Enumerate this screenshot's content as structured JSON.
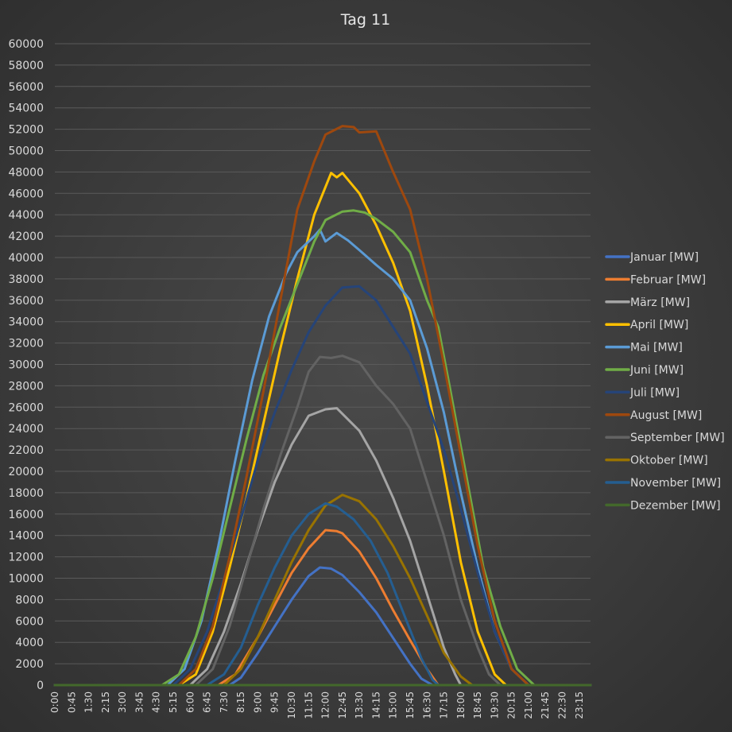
{
  "chart_data": {
    "type": "line",
    "title": "Tag 11",
    "xlabel": "",
    "ylabel": "",
    "ylim": [
      0,
      60000
    ],
    "y_ticks": [
      0,
      2000,
      4000,
      6000,
      8000,
      10000,
      12000,
      14000,
      16000,
      18000,
      20000,
      22000,
      24000,
      26000,
      28000,
      30000,
      32000,
      34000,
      36000,
      38000,
      40000,
      42000,
      44000,
      46000,
      48000,
      50000,
      52000,
      54000,
      56000,
      58000,
      60000
    ],
    "x_range": [
      "0:00",
      "23:45"
    ],
    "x_tick_labels": [
      "0:00",
      "0:45",
      "1:30",
      "2:15",
      "3:00",
      "3:45",
      "4:30",
      "5:15",
      "6:00",
      "6:45",
      "7:30",
      "8:15",
      "9:00",
      "9:45",
      "10:30",
      "11:15",
      "12:00",
      "12:45",
      "13:30",
      "14:15",
      "15:00",
      "15:45",
      "16:30",
      "17:15",
      "18:00",
      "18:45",
      "19:30",
      "20:15",
      "21:00",
      "21:45",
      "22:30",
      "23:15"
    ],
    "grid": true,
    "legend_position": "right",
    "series": [
      {
        "name": "Januar [MW]",
        "color": "#4472c4",
        "points": [
          [
            "0:00",
            0
          ],
          [
            "7:45",
            0
          ],
          [
            "8:15",
            700
          ],
          [
            "9:00",
            3000
          ],
          [
            "9:45",
            5500
          ],
          [
            "10:30",
            8000
          ],
          [
            "11:15",
            10200
          ],
          [
            "11:45",
            11000
          ],
          [
            "12:15",
            10900
          ],
          [
            "12:45",
            10300
          ],
          [
            "13:30",
            8700
          ],
          [
            "14:15",
            6800
          ],
          [
            "15:00",
            4400
          ],
          [
            "15:45",
            2000
          ],
          [
            "16:15",
            600
          ],
          [
            "16:45",
            0
          ],
          [
            "23:45",
            0
          ]
        ]
      },
      {
        "name": "Februar [MW]",
        "color": "#ed7d31",
        "points": [
          [
            "0:00",
            0
          ],
          [
            "7:15",
            0
          ],
          [
            "8:00",
            1000
          ],
          [
            "9:00",
            4500
          ],
          [
            "9:45",
            7500
          ],
          [
            "10:30",
            10500
          ],
          [
            "11:15",
            12800
          ],
          [
            "12:00",
            14500
          ],
          [
            "12:30",
            14400
          ],
          [
            "12:45",
            14200
          ],
          [
            "13:30",
            12500
          ],
          [
            "14:15",
            10000
          ],
          [
            "15:00",
            7000
          ],
          [
            "15:45",
            4200
          ],
          [
            "16:30",
            1500
          ],
          [
            "17:00",
            0
          ],
          [
            "23:45",
            0
          ]
        ]
      },
      {
        "name": "März [MW]",
        "color": "#a5a5a5",
        "points": [
          [
            "0:00",
            0
          ],
          [
            "6:00",
            0
          ],
          [
            "6:45",
            1500
          ],
          [
            "7:30",
            5000
          ],
          [
            "8:15",
            9500
          ],
          [
            "9:00",
            14500
          ],
          [
            "9:45",
            19000
          ],
          [
            "10:30",
            22500
          ],
          [
            "11:15",
            25200
          ],
          [
            "12:00",
            25800
          ],
          [
            "12:30",
            25900
          ],
          [
            "13:30",
            23800
          ],
          [
            "14:15",
            21000
          ],
          [
            "15:00",
            17500
          ],
          [
            "15:45",
            13500
          ],
          [
            "16:30",
            8500
          ],
          [
            "17:15",
            3500
          ],
          [
            "17:45",
            1000
          ],
          [
            "18:00",
            0
          ],
          [
            "23:45",
            0
          ]
        ]
      },
      {
        "name": "April [MW]",
        "color": "#ffc000",
        "points": [
          [
            "0:00",
            0
          ],
          [
            "5:30",
            0
          ],
          [
            "6:15",
            1000
          ],
          [
            "7:00",
            5000
          ],
          [
            "7:45",
            11000
          ],
          [
            "8:30",
            17500
          ],
          [
            "9:15",
            24500
          ],
          [
            "10:00",
            31500
          ],
          [
            "10:45",
            38000
          ],
          [
            "11:30",
            44000
          ],
          [
            "12:15",
            47900
          ],
          [
            "12:30",
            47500
          ],
          [
            "12:45",
            47900
          ],
          [
            "13:30",
            46000
          ],
          [
            "14:15",
            43000
          ],
          [
            "15:00",
            39500
          ],
          [
            "15:45",
            35000
          ],
          [
            "16:30",
            28000
          ],
          [
            "17:15",
            20000
          ],
          [
            "18:00",
            11500
          ],
          [
            "18:45",
            5000
          ],
          [
            "19:30",
            1000
          ],
          [
            "20:00",
            0
          ],
          [
            "23:45",
            0
          ]
        ]
      },
      {
        "name": "Mai [MW]",
        "color": "#5b9bd5",
        "points": [
          [
            "0:00",
            0
          ],
          [
            "5:00",
            0
          ],
          [
            "5:45",
            1500
          ],
          [
            "6:30",
            6000
          ],
          [
            "7:15",
            13000
          ],
          [
            "8:00",
            21000
          ],
          [
            "8:45",
            28500
          ],
          [
            "9:30",
            34500
          ],
          [
            "10:15",
            38500
          ],
          [
            "10:45",
            40500
          ],
          [
            "11:30",
            42000
          ],
          [
            "11:45",
            42600
          ],
          [
            "12:00",
            41500
          ],
          [
            "12:30",
            42300
          ],
          [
            "13:00",
            41600
          ],
          [
            "13:30",
            40700
          ],
          [
            "14:15",
            39300
          ],
          [
            "15:00",
            38000
          ],
          [
            "15:45",
            36000
          ],
          [
            "16:30",
            31500
          ],
          [
            "17:15",
            25500
          ],
          [
            "18:00",
            18000
          ],
          [
            "18:45",
            11000
          ],
          [
            "19:30",
            5000
          ],
          [
            "20:15",
            1500
          ],
          [
            "21:00",
            0
          ],
          [
            "23:45",
            0
          ]
        ]
      },
      {
        "name": "Juni [MW]",
        "color": "#70ad47",
        "points": [
          [
            "0:00",
            0
          ],
          [
            "4:45",
            0
          ],
          [
            "5:30",
            1000
          ],
          [
            "6:15",
            4500
          ],
          [
            "7:00",
            10000
          ],
          [
            "7:45",
            16500
          ],
          [
            "8:30",
            23000
          ],
          [
            "9:15",
            29000
          ],
          [
            "10:00",
            33500
          ],
          [
            "10:45",
            37500
          ],
          [
            "11:30",
            41500
          ],
          [
            "12:00",
            43500
          ],
          [
            "12:45",
            44300
          ],
          [
            "13:15",
            44400
          ],
          [
            "13:45",
            44200
          ],
          [
            "14:15",
            43600
          ],
          [
            "15:00",
            42400
          ],
          [
            "15:45",
            40500
          ],
          [
            "16:30",
            36000
          ],
          [
            "17:00",
            33500
          ],
          [
            "17:30",
            28000
          ],
          [
            "18:15",
            19500
          ],
          [
            "19:00",
            11000
          ],
          [
            "19:45",
            5500
          ],
          [
            "20:30",
            1500
          ],
          [
            "21:15",
            0
          ],
          [
            "23:45",
            0
          ]
        ]
      },
      {
        "name": "Juli [MW]",
        "color": "#264478",
        "points": [
          [
            "0:00",
            0
          ],
          [
            "5:15",
            0
          ],
          [
            "6:00",
            1500
          ],
          [
            "6:45",
            5000
          ],
          [
            "7:30",
            10000
          ],
          [
            "8:15",
            15500
          ],
          [
            "9:00",
            21000
          ],
          [
            "9:45",
            25500
          ],
          [
            "10:30",
            29500
          ],
          [
            "11:15",
            33000
          ],
          [
            "12:00",
            35500
          ],
          [
            "12:45",
            37200
          ],
          [
            "13:30",
            37300
          ],
          [
            "14:15",
            36000
          ],
          [
            "15:00",
            33500
          ],
          [
            "15:45",
            31000
          ],
          [
            "16:30",
            26500
          ],
          [
            "17:15",
            22000
          ],
          [
            "18:00",
            16500
          ],
          [
            "18:45",
            10500
          ],
          [
            "19:30",
            5000
          ],
          [
            "20:15",
            1500
          ],
          [
            "21:00",
            0
          ],
          [
            "23:45",
            0
          ]
        ]
      },
      {
        "name": "August [MW]",
        "color": "#9e480e",
        "points": [
          [
            "0:00",
            0
          ],
          [
            "5:30",
            0
          ],
          [
            "6:15",
            1500
          ],
          [
            "7:00",
            5500
          ],
          [
            "7:45",
            12000
          ],
          [
            "8:30",
            19500
          ],
          [
            "9:15",
            27500
          ],
          [
            "10:00",
            36000
          ],
          [
            "10:45",
            44500
          ],
          [
            "11:30",
            49000
          ],
          [
            "12:00",
            51500
          ],
          [
            "12:45",
            52300
          ],
          [
            "13:15",
            52200
          ],
          [
            "13:30",
            51700
          ],
          [
            "14:15",
            51800
          ],
          [
            "15:00",
            48000
          ],
          [
            "15:45",
            44500
          ],
          [
            "16:30",
            38000
          ],
          [
            "17:15",
            30000
          ],
          [
            "18:00",
            21500
          ],
          [
            "18:45",
            13000
          ],
          [
            "19:30",
            6000
          ],
          [
            "20:15",
            1500
          ],
          [
            "21:00",
            0
          ],
          [
            "23:45",
            0
          ]
        ]
      },
      {
        "name": "September [MW]",
        "color": "#636363",
        "points": [
          [
            "0:00",
            0
          ],
          [
            "6:15",
            0
          ],
          [
            "7:00",
            1500
          ],
          [
            "7:45",
            5500
          ],
          [
            "8:30",
            11000
          ],
          [
            "9:15",
            16500
          ],
          [
            "10:00",
            21500
          ],
          [
            "10:45",
            26000
          ],
          [
            "11:15",
            29300
          ],
          [
            "11:45",
            30700
          ],
          [
            "12:15",
            30600
          ],
          [
            "12:45",
            30800
          ],
          [
            "13:30",
            30200
          ],
          [
            "14:15",
            28000
          ],
          [
            "15:00",
            26300
          ],
          [
            "15:45",
            24000
          ],
          [
            "16:30",
            19000
          ],
          [
            "17:15",
            14000
          ],
          [
            "18:00",
            8000
          ],
          [
            "18:45",
            3500
          ],
          [
            "19:15",
            1000
          ],
          [
            "19:45",
            0
          ],
          [
            "23:45",
            0
          ]
        ]
      },
      {
        "name": "Oktober [MW]",
        "color": "#997300",
        "points": [
          [
            "0:00",
            0
          ],
          [
            "7:30",
            0
          ],
          [
            "8:15",
            1500
          ],
          [
            "9:00",
            4500
          ],
          [
            "9:45",
            8000
          ],
          [
            "10:30",
            11500
          ],
          [
            "11:15",
            14500
          ],
          [
            "12:00",
            16800
          ],
          [
            "12:45",
            17800
          ],
          [
            "13:30",
            17200
          ],
          [
            "14:15",
            15500
          ],
          [
            "15:00",
            13000
          ],
          [
            "15:45",
            10000
          ],
          [
            "16:30",
            6500
          ],
          [
            "17:15",
            3000
          ],
          [
            "18:00",
            800
          ],
          [
            "18:30",
            0
          ],
          [
            "23:45",
            0
          ]
        ]
      },
      {
        "name": "November [MW]",
        "color": "#255e91",
        "points": [
          [
            "0:00",
            0
          ],
          [
            "6:45",
            0
          ],
          [
            "7:30",
            1000
          ],
          [
            "8:15",
            3500
          ],
          [
            "9:00",
            7500
          ],
          [
            "9:45",
            11000
          ],
          [
            "10:30",
            14000
          ],
          [
            "11:15",
            16000
          ],
          [
            "12:00",
            17000
          ],
          [
            "12:30",
            16700
          ],
          [
            "13:15",
            15500
          ],
          [
            "14:00",
            13500
          ],
          [
            "14:45",
            10500
          ],
          [
            "15:30",
            6500
          ],
          [
            "16:15",
            2500
          ],
          [
            "16:45",
            500
          ],
          [
            "17:00",
            0
          ],
          [
            "23:45",
            0
          ]
        ]
      },
      {
        "name": "Dezember [MW]",
        "color": "#43682b",
        "points": [
          [
            "0:00",
            0
          ],
          [
            "23:45",
            0
          ]
        ]
      }
    ]
  }
}
